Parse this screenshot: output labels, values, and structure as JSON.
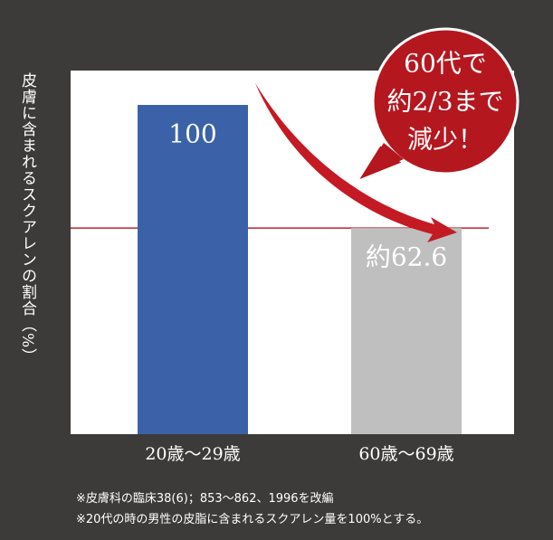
{
  "chart_data": {
    "type": "bar",
    "y_label": "皮膚に含まれるスクアレンの割合（%）",
    "categories": [
      "20歳～29歳",
      "60歳～69歳"
    ],
    "values": [
      100,
      62.6
    ],
    "value_labels": [
      "100",
      "約62.6"
    ],
    "colors": [
      "#3b62a8",
      "#bfbfbf"
    ],
    "ylim": [
      0,
      100
    ],
    "annotation": [
      "60代で",
      "約2/3まで",
      "減少！"
    ],
    "notes": [
      "※皮膚科の臨床38(6)；853～862、1996を改編",
      "※20代の時の男性の皮脂に含まれるスクアレン量を100%とする。"
    ]
  }
}
